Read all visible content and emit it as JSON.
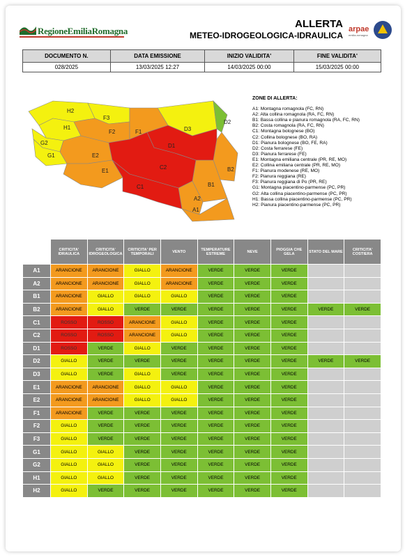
{
  "header": {
    "region_logo": "RegioneEmiliaRomagna",
    "title_line1": "ALLERTA",
    "title_line2": "METEO-IDROGEOLOGICA-IDRAULICA",
    "arpae_logo": "arpae",
    "arpae_sub": "emilia-romagna"
  },
  "info": {
    "headers": [
      "DOCUMENTO N.",
      "DATA EMISSIONE",
      "INIZIO VALIDITA'",
      "FINE VALIDITA'"
    ],
    "values": [
      "028/2025",
      "13/03/2025 12:27",
      "14/03/2025 00:00",
      "15/03/2025 00:00"
    ]
  },
  "map": {
    "labels": [
      "H2",
      "H1",
      "G2",
      "G1",
      "F3",
      "F2",
      "F1",
      "E2",
      "E1",
      "D1",
      "C2",
      "C1",
      "D3",
      "D2",
      "B2",
      "B1",
      "A2",
      "A1"
    ],
    "colors": {
      "verde": "#7cbf34",
      "giallo": "#f4f10f",
      "arancione": "#f39a1e",
      "rosso": "#e21b12"
    }
  },
  "zones_legend": {
    "title": "ZONE DI ALLERTA:",
    "items": [
      "A1: Montagna romagnola (FC, RN)",
      "A2: Alta collina romagnola (RA, FC, RN)",
      "B1: Bassa collina e pianura romagnola (RA, FC, RN)",
      "B2: Costa romagnola (RA, FC, RN)",
      "C1: Montagna bolognese (BO)",
      "C2: Collina bolognese (BO, RA)",
      "D1: Pianura bolognese (BO, FE, RA)",
      "D2: Costa ferrarese (FE)",
      "D3: Pianura ferrarese (FE)",
      "E1: Montagna emiliana centrale (PR, RE, MO)",
      "E2: Collina emiliana centrale (PR, RE, MO)",
      "F1: Pianura modenese (RE, MO)",
      "F2: Pianura reggiana (RE)",
      "F3: Pianura reggiana di Po (PR, RE)",
      "G1: Montagna piacentino-parmense (PC, PR)",
      "G2: Alta collina piacentino-parmense (PC, PR)",
      "H1: Bassa collina piacentino-parmense (PC, PR)",
      "H2: Pianura piacentino-parmense (PC, PR)"
    ]
  },
  "grid": {
    "headers": [
      "CRITICITA' IDRAULICA",
      "CRITICITA' IDROGEOLOGICA",
      "CRITICITA' PER TEMPORALI",
      "VENTO",
      "TEMPERATURE ESTREME",
      "NEVE",
      "PIOGGIA CHE GELA",
      "STATO DEL MARE",
      "CRITICITA' COSTIERA"
    ],
    "rows": [
      {
        "zone": "A1",
        "cells": [
          "ARANCIONE",
          "ARANCIONE",
          "GIALLO",
          "ARANCIONE",
          "VERDE",
          "VERDE",
          "VERDE",
          "",
          ""
        ]
      },
      {
        "zone": "A2",
        "cells": [
          "ARANCIONE",
          "ARANCIONE",
          "GIALLO",
          "ARANCIONE",
          "VERDE",
          "VERDE",
          "VERDE",
          "",
          ""
        ]
      },
      {
        "zone": "B1",
        "cells": [
          "ARANCIONE",
          "GIALLO",
          "GIALLO",
          "GIALLO",
          "VERDE",
          "VERDE",
          "VERDE",
          "",
          ""
        ]
      },
      {
        "zone": "B2",
        "cells": [
          "ARANCIONE",
          "GIALLO",
          "VERDE",
          "VERDE",
          "VERDE",
          "VERDE",
          "VERDE",
          "VERDE",
          "VERDE"
        ]
      },
      {
        "zone": "C1",
        "cells": [
          "ROSSO",
          "ROSSO",
          "ARANCIONE",
          "GIALLO",
          "VERDE",
          "VERDE",
          "VERDE",
          "",
          ""
        ]
      },
      {
        "zone": "C2",
        "cells": [
          "ROSSO",
          "ROSSO",
          "ARANCIONE",
          "GIALLO",
          "VERDE",
          "VERDE",
          "VERDE",
          "",
          ""
        ]
      },
      {
        "zone": "D1",
        "cells": [
          "ROSSO",
          "VERDE",
          "GIALLO",
          "VERDE",
          "VERDE",
          "VERDE",
          "VERDE",
          "",
          ""
        ]
      },
      {
        "zone": "D2",
        "cells": [
          "GIALLO",
          "VERDE",
          "VERDE",
          "VERDE",
          "VERDE",
          "VERDE",
          "VERDE",
          "VERDE",
          "VERDE"
        ]
      },
      {
        "zone": "D3",
        "cells": [
          "GIALLO",
          "VERDE",
          "GIALLO",
          "VERDE",
          "VERDE",
          "VERDE",
          "VERDE",
          "",
          ""
        ]
      },
      {
        "zone": "E1",
        "cells": [
          "ARANCIONE",
          "ARANCIONE",
          "GIALLO",
          "GIALLO",
          "VERDE",
          "VERDE",
          "VERDE",
          "",
          ""
        ]
      },
      {
        "zone": "E2",
        "cells": [
          "ARANCIONE",
          "ARANCIONE",
          "GIALLO",
          "GIALLO",
          "VERDE",
          "VERDE",
          "VERDE",
          "",
          ""
        ]
      },
      {
        "zone": "F1",
        "cells": [
          "ARANCIONE",
          "VERDE",
          "VERDE",
          "VERDE",
          "VERDE",
          "VERDE",
          "VERDE",
          "",
          ""
        ]
      },
      {
        "zone": "F2",
        "cells": [
          "GIALLO",
          "VERDE",
          "VERDE",
          "VERDE",
          "VERDE",
          "VERDE",
          "VERDE",
          "",
          ""
        ]
      },
      {
        "zone": "F3",
        "cells": [
          "GIALLO",
          "VERDE",
          "VERDE",
          "VERDE",
          "VERDE",
          "VERDE",
          "VERDE",
          "",
          ""
        ]
      },
      {
        "zone": "G1",
        "cells": [
          "GIALLO",
          "GIALLO",
          "VERDE",
          "VERDE",
          "VERDE",
          "VERDE",
          "VERDE",
          "",
          ""
        ]
      },
      {
        "zone": "G2",
        "cells": [
          "GIALLO",
          "GIALLO",
          "VERDE",
          "VERDE",
          "VERDE",
          "VERDE",
          "VERDE",
          "",
          ""
        ]
      },
      {
        "zone": "H1",
        "cells": [
          "GIALLO",
          "GIALLO",
          "VERDE",
          "VERDE",
          "VERDE",
          "VERDE",
          "VERDE",
          "",
          ""
        ]
      },
      {
        "zone": "H2",
        "cells": [
          "GIALLO",
          "VERDE",
          "VERDE",
          "VERDE",
          "VERDE",
          "VERDE",
          "VERDE",
          "",
          ""
        ]
      }
    ]
  }
}
